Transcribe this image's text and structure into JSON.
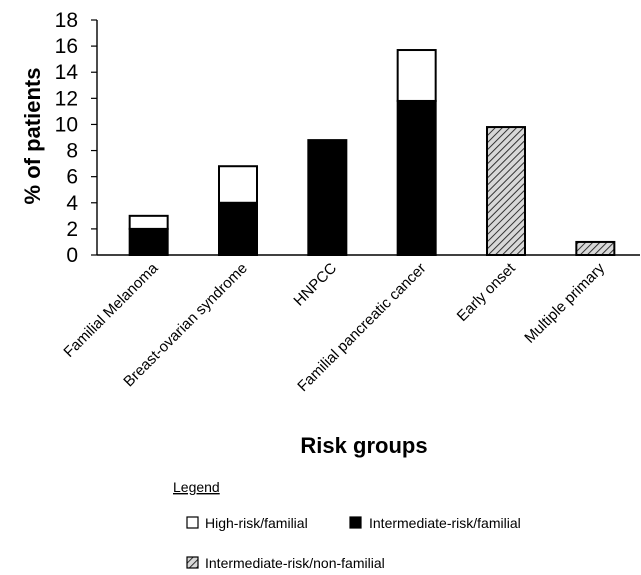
{
  "chart_data": {
    "type": "bar",
    "stacked": true,
    "title": "",
    "xlabel": "Risk groups",
    "ylabel": "% of patients",
    "ylim": [
      0,
      18
    ],
    "yticks": [
      0,
      2,
      4,
      6,
      8,
      10,
      12,
      14,
      16,
      18
    ],
    "grid": false,
    "categories": [
      "Familial Melanoma",
      "Breast-ovarian syndrome",
      "HNPCC",
      "Familial pancreatic cancer",
      "Early onset",
      "Multiple primary"
    ],
    "series": [
      {
        "name": "Intermediate-risk/familial",
        "values": [
          2,
          4,
          8.8,
          11.8,
          0,
          0
        ],
        "color": "#000000",
        "pattern": "solid"
      },
      {
        "name": "High-risk/familial",
        "values": [
          1,
          2.8,
          0,
          3.9,
          0,
          0
        ],
        "color": "#ffffff",
        "pattern": "open"
      },
      {
        "name": "Intermediate-risk/non-familial",
        "values": [
          0,
          0,
          0,
          0,
          9.8,
          1
        ],
        "color": "#9a9a9a",
        "pattern": "hatched"
      }
    ],
    "legend": {
      "title": "Legend",
      "placement": "bottom",
      "entries": [
        "High-risk/familial",
        "Intermediate-risk/familial",
        "Intermediate-risk/non-familial"
      ]
    }
  }
}
